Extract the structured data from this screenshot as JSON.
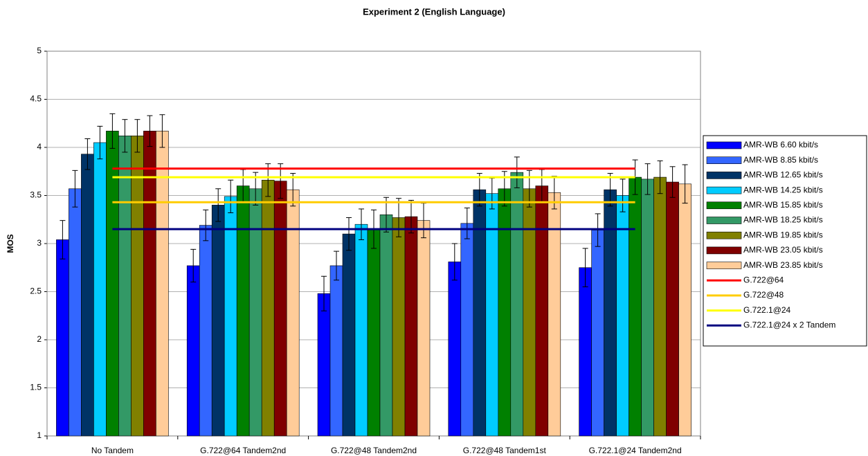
{
  "chart_data": {
    "type": "bar",
    "title": "Experiment 2 (English Language)",
    "y_label": "MOS",
    "categories": [
      "No Tandem",
      "G.722@64 Tandem2nd",
      "G.722@48 Tandem2nd",
      "G.722@48 Tandem1st",
      "G.722.1@24 Tandem2nd"
    ],
    "ylim": [
      1,
      5
    ],
    "yticks": [
      1,
      1.5,
      2,
      2.5,
      3,
      3.5,
      4,
      4.5,
      5
    ],
    "grid": true,
    "legend": "right",
    "series": [
      {
        "name": "AMR-WB 6.60 kbit/s",
        "color": "#0000ff",
        "values": [
          3.04,
          2.77,
          2.48,
          2.81,
          2.75
        ],
        "errors": [
          0.2,
          0.17,
          0.18,
          0.19,
          0.2
        ]
      },
      {
        "name": "AMR-WB 8.85 kbit/s",
        "color": "#3366ff",
        "values": [
          3.57,
          3.19,
          2.77,
          3.21,
          3.14
        ],
        "errors": [
          0.19,
          0.16,
          0.15,
          0.16,
          0.17
        ]
      },
      {
        "name": "AMR-WB 12.65 kbit/s",
        "color": "#003366",
        "values": [
          3.93,
          3.4,
          3.1,
          3.56,
          3.56
        ],
        "errors": [
          0.16,
          0.17,
          0.17,
          0.17,
          0.17
        ]
      },
      {
        "name": "AMR-WB 14.25 kbit/s",
        "color": "#00ccff",
        "values": [
          4.05,
          3.49,
          3.2,
          3.52,
          3.5
        ],
        "errors": [
          0.17,
          0.17,
          0.16,
          0.16,
          0.17
        ]
      },
      {
        "name": "AMR-WB 15.85 kbit/s",
        "color": "#008000",
        "values": [
          4.17,
          3.6,
          3.15,
          3.57,
          3.69
        ],
        "errors": [
          0.18,
          0.17,
          0.2,
          0.18,
          0.18
        ]
      },
      {
        "name": "AMR-WB 18.25 kbit/s",
        "color": "#339966",
        "values": [
          4.12,
          3.57,
          3.3,
          3.74,
          3.67
        ],
        "errors": [
          0.17,
          0.17,
          0.18,
          0.16,
          0.16
        ]
      },
      {
        "name": "AMR-WB 19.85 kbit/s",
        "color": "#808000",
        "values": [
          4.12,
          3.66,
          3.27,
          3.57,
          3.69
        ],
        "errors": [
          0.17,
          0.17,
          0.2,
          0.19,
          0.17
        ]
      },
      {
        "name": "AMR-WB 23.05 kbit/s",
        "color": "#800000",
        "values": [
          4.17,
          3.65,
          3.28,
          3.6,
          3.64
        ],
        "errors": [
          0.16,
          0.18,
          0.17,
          0.17,
          0.16
        ]
      },
      {
        "name": "AMR-WB 23.85 kbit/s",
        "color": "#ffcc99",
        "values": [
          4.17,
          3.56,
          3.24,
          3.53,
          3.62
        ],
        "errors": [
          0.17,
          0.17,
          0.18,
          0.17,
          0.2
        ]
      }
    ],
    "reference_lines": [
      {
        "name": "G.722@64",
        "color": "#ff0000",
        "value": 3.78
      },
      {
        "name": "G.722@48",
        "color": "#ffcc00",
        "value": 3.43
      },
      {
        "name": "G.722.1@24",
        "color": "#ffff00",
        "value": 3.69
      },
      {
        "name": "G.722.1@24 x 2 Tandem",
        "color": "#000080",
        "value": 3.15
      }
    ]
  }
}
